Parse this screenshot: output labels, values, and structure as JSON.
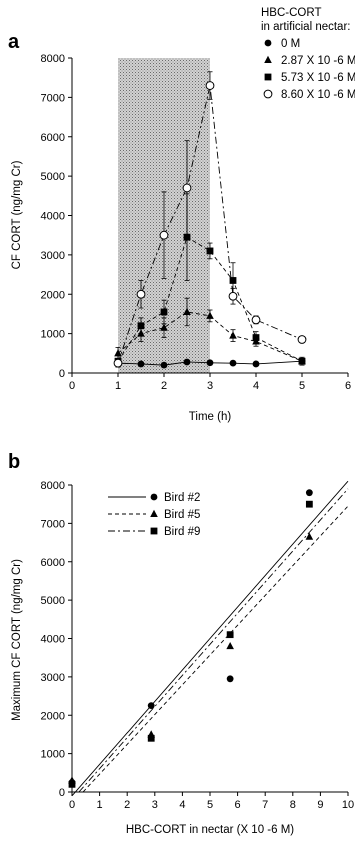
{
  "chart_data": [
    {
      "type": "line",
      "panel_label": "a",
      "xlabel": "Time (h)",
      "ylabel": "CF CORT (ng/mg Cr)",
      "xlim": [
        0,
        6
      ],
      "ylim": [
        0,
        8000
      ],
      "xticks": [
        "0",
        "1",
        "2",
        "3",
        "4",
        "5",
        "6"
      ],
      "yticks": [
        "0",
        "1000",
        "2000",
        "3000",
        "4000",
        "5000",
        "6000",
        "7000",
        "8000"
      ],
      "shaded_region": [
        1,
        3
      ],
      "legend_title": [
        "HBC-CORT",
        "in artificial nectar:"
      ],
      "legend_position": "top-right",
      "series": [
        {
          "name": "0 M",
          "marker": "circle-filled",
          "line": "solid",
          "x": [
            1,
            1.5,
            2,
            2.5,
            3,
            3.5,
            4,
            5
          ],
          "y": [
            250,
            230,
            200,
            280,
            260,
            250,
            230,
            300
          ],
          "err": [
            0,
            0,
            0,
            0,
            0,
            0,
            0,
            0
          ]
        },
        {
          "name": "2.87 X 10 -6 M",
          "marker": "triangle-filled",
          "line": "dashed",
          "x": [
            1,
            1.5,
            2,
            2.5,
            3,
            3.5,
            4,
            5
          ],
          "y": [
            500,
            1000,
            1150,
            1550,
            1450,
            950,
            800,
            300
          ],
          "err": [
            150,
            200,
            250,
            350,
            150,
            150,
            120,
            0
          ]
        },
        {
          "name": "5.73 X 10 -6 M",
          "marker": "square-filled",
          "line": "dashed",
          "x": [
            1,
            1.5,
            2,
            2.5,
            3,
            3.5,
            4,
            5
          ],
          "y": [
            300,
            1200,
            1550,
            3450,
            3100,
            2350,
            900,
            300
          ],
          "err": [
            150,
            200,
            300,
            1100,
            200,
            450,
            150,
            100
          ]
        },
        {
          "name": "8.60 X 10 -6 M",
          "marker": "circle-open",
          "line": "dashdot",
          "x": [
            1,
            1.5,
            2,
            2.5,
            3,
            3.5,
            4,
            5
          ],
          "y": [
            250,
            2000,
            3500,
            4700,
            7300,
            1950,
            1350,
            850
          ],
          "err": [
            100,
            350,
            1100,
            1200,
            350,
            200,
            100,
            0
          ]
        }
      ]
    },
    {
      "type": "scatter",
      "panel_label": "b",
      "xlabel": "HBC-CORT in nectar  (X 10 -6 M)",
      "ylabel": "Maximum CF CORT (ng/mg Cr)",
      "xlim": [
        0,
        10
      ],
      "ylim": [
        0,
        8000
      ],
      "xticks": [
        "0",
        "1",
        "2",
        "3",
        "4",
        "5",
        "6",
        "7",
        "8",
        "9",
        "10"
      ],
      "yticks": [
        "0",
        "1000",
        "2000",
        "3000",
        "4000",
        "5000",
        "6000",
        "7000",
        "8000"
      ],
      "legend_position": "top-left",
      "series": [
        {
          "name": "Bird #2",
          "marker": "circle-filled",
          "line": "solid",
          "x": [
            0,
            2.87,
            5.73,
            8.6
          ],
          "y": [
            250,
            2250,
            2950,
            7800
          ],
          "fit": [
            [
              0,
              -100
            ],
            [
              10,
              8100
            ]
          ]
        },
        {
          "name": "Bird #5",
          "marker": "triangle-filled",
          "line": "dashed",
          "x": [
            0,
            2.87,
            5.73,
            8.6
          ],
          "y": [
            300,
            1500,
            3800,
            6650
          ],
          "fit": [
            [
              0.4,
              0
            ],
            [
              10,
              7450
            ]
          ]
        },
        {
          "name": "Bird #9",
          "marker": "square-filled",
          "line": "dashdot",
          "x": [
            0,
            2.87,
            5.73,
            8.6
          ],
          "y": [
            200,
            1400,
            4100,
            7500
          ],
          "fit": [
            [
              0.25,
              0
            ],
            [
              10,
              7900
            ]
          ]
        }
      ]
    }
  ]
}
